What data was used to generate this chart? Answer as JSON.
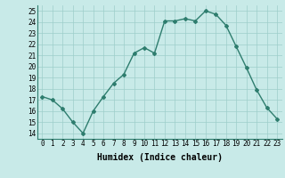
{
  "x": [
    0,
    1,
    2,
    3,
    4,
    5,
    6,
    7,
    8,
    9,
    10,
    11,
    12,
    13,
    14,
    15,
    16,
    17,
    18,
    19,
    20,
    21,
    22,
    23
  ],
  "y": [
    17.3,
    17.0,
    16.2,
    15.0,
    14.0,
    16.0,
    17.3,
    18.5,
    19.3,
    21.2,
    21.7,
    21.2,
    24.1,
    24.1,
    24.3,
    24.1,
    25.0,
    24.7,
    23.7,
    21.8,
    19.9,
    17.9,
    16.3,
    15.3
  ],
  "line_color": "#2e7d6e",
  "marker": "D",
  "marker_size": 2.0,
  "bg_color": "#c8eae8",
  "grid_color": "#9ececa",
  "xlabel": "Humidex (Indice chaleur)",
  "ylim": [
    13.5,
    25.5
  ],
  "xlim": [
    -0.5,
    23.5
  ],
  "yticks": [
    14,
    15,
    16,
    17,
    18,
    19,
    20,
    21,
    22,
    23,
    24,
    25
  ],
  "xticks": [
    0,
    1,
    2,
    3,
    4,
    5,
    6,
    7,
    8,
    9,
    10,
    11,
    12,
    13,
    14,
    15,
    16,
    17,
    18,
    19,
    20,
    21,
    22,
    23
  ],
  "tick_fontsize": 5.5,
  "xlabel_fontsize": 7.0,
  "linewidth": 1.0
}
